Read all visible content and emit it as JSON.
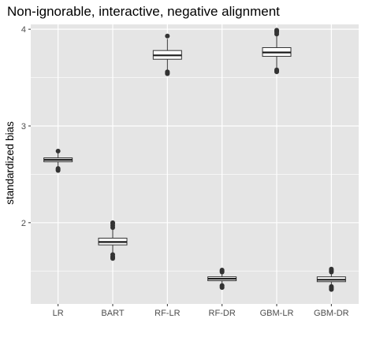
{
  "chart_data": {
    "type": "boxplot",
    "title": "Non-ignorable, interactive, negative alignment",
    "xlabel": "",
    "ylabel": "standardized bias",
    "ylim": [
      1.16,
      4.05
    ],
    "y_ticks": [
      2,
      3,
      4
    ],
    "grid": true,
    "colors": {
      "panel": "#e5e5e5",
      "grid_major": "#ffffff",
      "box_fill": "#ffffff",
      "box_line": "#333333",
      "median": "#1a1a1a",
      "outlier": "#333333"
    },
    "categories": [
      "LR",
      "BART",
      "RF-LR",
      "RF-DR",
      "GBM-LR",
      "GBM-DR"
    ],
    "boxes": [
      {
        "category": "LR",
        "lower_whisker": 2.57,
        "q1": 2.63,
        "median": 2.65,
        "q3": 2.67,
        "upper_whisker": 2.72,
        "outliers": [
          2.74,
          2.56,
          2.55,
          2.54
        ]
      },
      {
        "category": "BART",
        "lower_whisker": 1.69,
        "q1": 1.77,
        "median": 1.8,
        "q3": 1.84,
        "upper_whisker": 1.93,
        "outliers": [
          1.95,
          1.97,
          1.99,
          2.0,
          1.67,
          1.65,
          1.64,
          1.63
        ]
      },
      {
        "category": "RF-LR",
        "lower_whisker": 3.58,
        "q1": 3.69,
        "median": 3.73,
        "q3": 3.78,
        "upper_whisker": 3.9,
        "outliers": [
          3.93,
          3.56,
          3.55,
          3.54
        ]
      },
      {
        "category": "RF-DR",
        "lower_whisker": 1.36,
        "q1": 1.4,
        "median": 1.42,
        "q3": 1.44,
        "upper_whisker": 1.48,
        "outliers": [
          1.49,
          1.5,
          1.51,
          1.35,
          1.34,
          1.33
        ]
      },
      {
        "category": "GBM-LR",
        "lower_whisker": 3.6,
        "q1": 3.72,
        "median": 3.76,
        "q3": 3.81,
        "upper_whisker": 3.93,
        "outliers": [
          3.95,
          3.97,
          3.98,
          3.99,
          3.58,
          3.57,
          3.56
        ]
      },
      {
        "category": "GBM-DR",
        "lower_whisker": 1.36,
        "q1": 1.39,
        "median": 1.41,
        "q3": 1.44,
        "upper_whisker": 1.48,
        "outliers": [
          1.49,
          1.5,
          1.51,
          1.52,
          1.34,
          1.33,
          1.32,
          1.31
        ]
      }
    ]
  }
}
